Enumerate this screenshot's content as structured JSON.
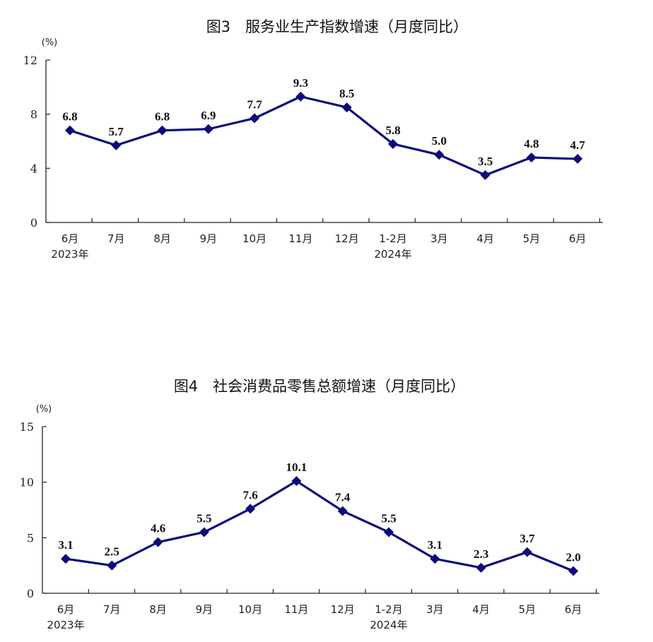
{
  "colors": {
    "series": "#0b0b7a",
    "axis": "#222222"
  },
  "chart_data": [
    {
      "type": "line",
      "title": "图3　服务业生产指数增速（月度同比）",
      "unit": "(%)",
      "categories": [
        "6月",
        "7月",
        "8月",
        "9月",
        "10月",
        "11月",
        "12月",
        "1-2月",
        "3月",
        "4月",
        "5月",
        "6月"
      ],
      "year_labels": [
        {
          "index": 0,
          "label": "2023年"
        },
        {
          "index": 7,
          "label": "2024年"
        }
      ],
      "values": [
        6.8,
        5.7,
        6.8,
        6.9,
        7.7,
        9.3,
        8.5,
        5.8,
        5.0,
        3.5,
        4.8,
        4.7
      ],
      "data_labels": [
        "6.8",
        "5.7",
        "6.8",
        "6.9",
        "7.7",
        "9.3",
        "8.5",
        "5.8",
        "5.0",
        "3.5",
        "4.8",
        "4.7"
      ],
      "ylim": [
        0,
        12
      ],
      "yticks": [
        0,
        4,
        8,
        12
      ],
      "grid": false,
      "legend": "none",
      "marker": "diamond"
    },
    {
      "type": "line",
      "title": "图4　社会消费品零售总额增速（月度同比）",
      "unit": "(%)",
      "categories": [
        "6月",
        "7月",
        "8月",
        "9月",
        "10月",
        "11月",
        "12月",
        "1-2月",
        "3月",
        "4月",
        "5月",
        "6月"
      ],
      "year_labels": [
        {
          "index": 0,
          "label": "2023年"
        },
        {
          "index": 7,
          "label": "2024年"
        }
      ],
      "values": [
        3.1,
        2.5,
        4.6,
        5.5,
        7.6,
        10.1,
        7.4,
        5.5,
        3.1,
        2.3,
        3.7,
        2.0
      ],
      "data_labels": [
        "3.1",
        "2.5",
        "4.6",
        "5.5",
        "7.6",
        "10.1",
        "7.4",
        "5.5",
        "3.1",
        "2.3",
        "3.7",
        "2.0"
      ],
      "ylim": [
        0,
        15
      ],
      "yticks": [
        0,
        5,
        10,
        15
      ],
      "grid": false,
      "legend": "none",
      "marker": "diamond"
    }
  ]
}
